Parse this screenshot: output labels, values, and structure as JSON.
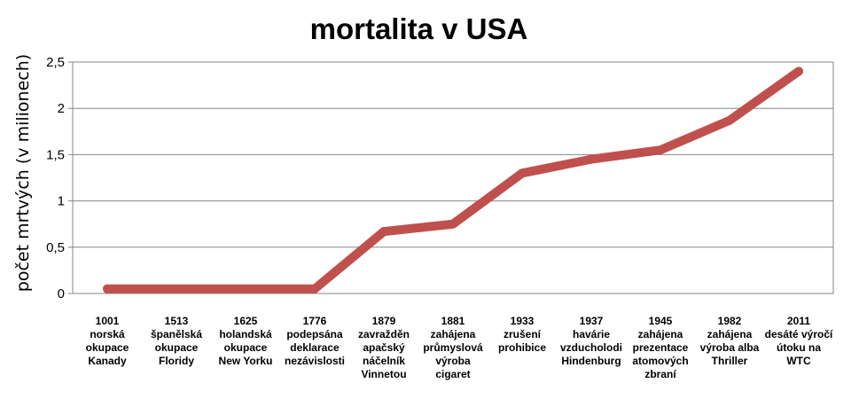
{
  "chart_data": {
    "type": "line",
    "title": "mortalita v USA",
    "ylabel": "počet mrtvých (v milionech)",
    "xlabel": "",
    "ylim": [
      0,
      2.5
    ],
    "yticks": [
      "0",
      "0,5",
      "1",
      "1,5",
      "2",
      "2,5"
    ],
    "grid": true,
    "legend": "none",
    "line_color": "#c0504d",
    "categories": [
      [
        "1001",
        "norská",
        "okupace",
        "Kanady"
      ],
      [
        "1513",
        "španělská",
        "okupace",
        "Floridy"
      ],
      [
        "1625",
        "holandská",
        "okupace",
        "New Yorku"
      ],
      [
        "1776",
        "podepsána",
        "deklarace",
        "nezávislosti"
      ],
      [
        "1879",
        "zavražděn",
        "apačský",
        "náčelník",
        "Vinnetou"
      ],
      [
        "1881",
        "zahájena",
        "průmyslová",
        "výroba",
        "cigaret"
      ],
      [
        "1933",
        "zrušení",
        "prohibice"
      ],
      [
        "1937",
        "havárie",
        "vzducholodi",
        "Hindenburg"
      ],
      [
        "1945",
        "zahájena",
        "prezentace",
        "atomových",
        "zbraní"
      ],
      [
        "1982",
        "zahájena",
        "výroba alba",
        "Thriller"
      ],
      [
        "2011",
        "desáté výročí",
        "útoku na",
        "WTC"
      ]
    ],
    "values": [
      0.05,
      0.05,
      0.05,
      0.05,
      0.67,
      0.75,
      1.3,
      1.45,
      1.55,
      1.87,
      2.4
    ]
  }
}
